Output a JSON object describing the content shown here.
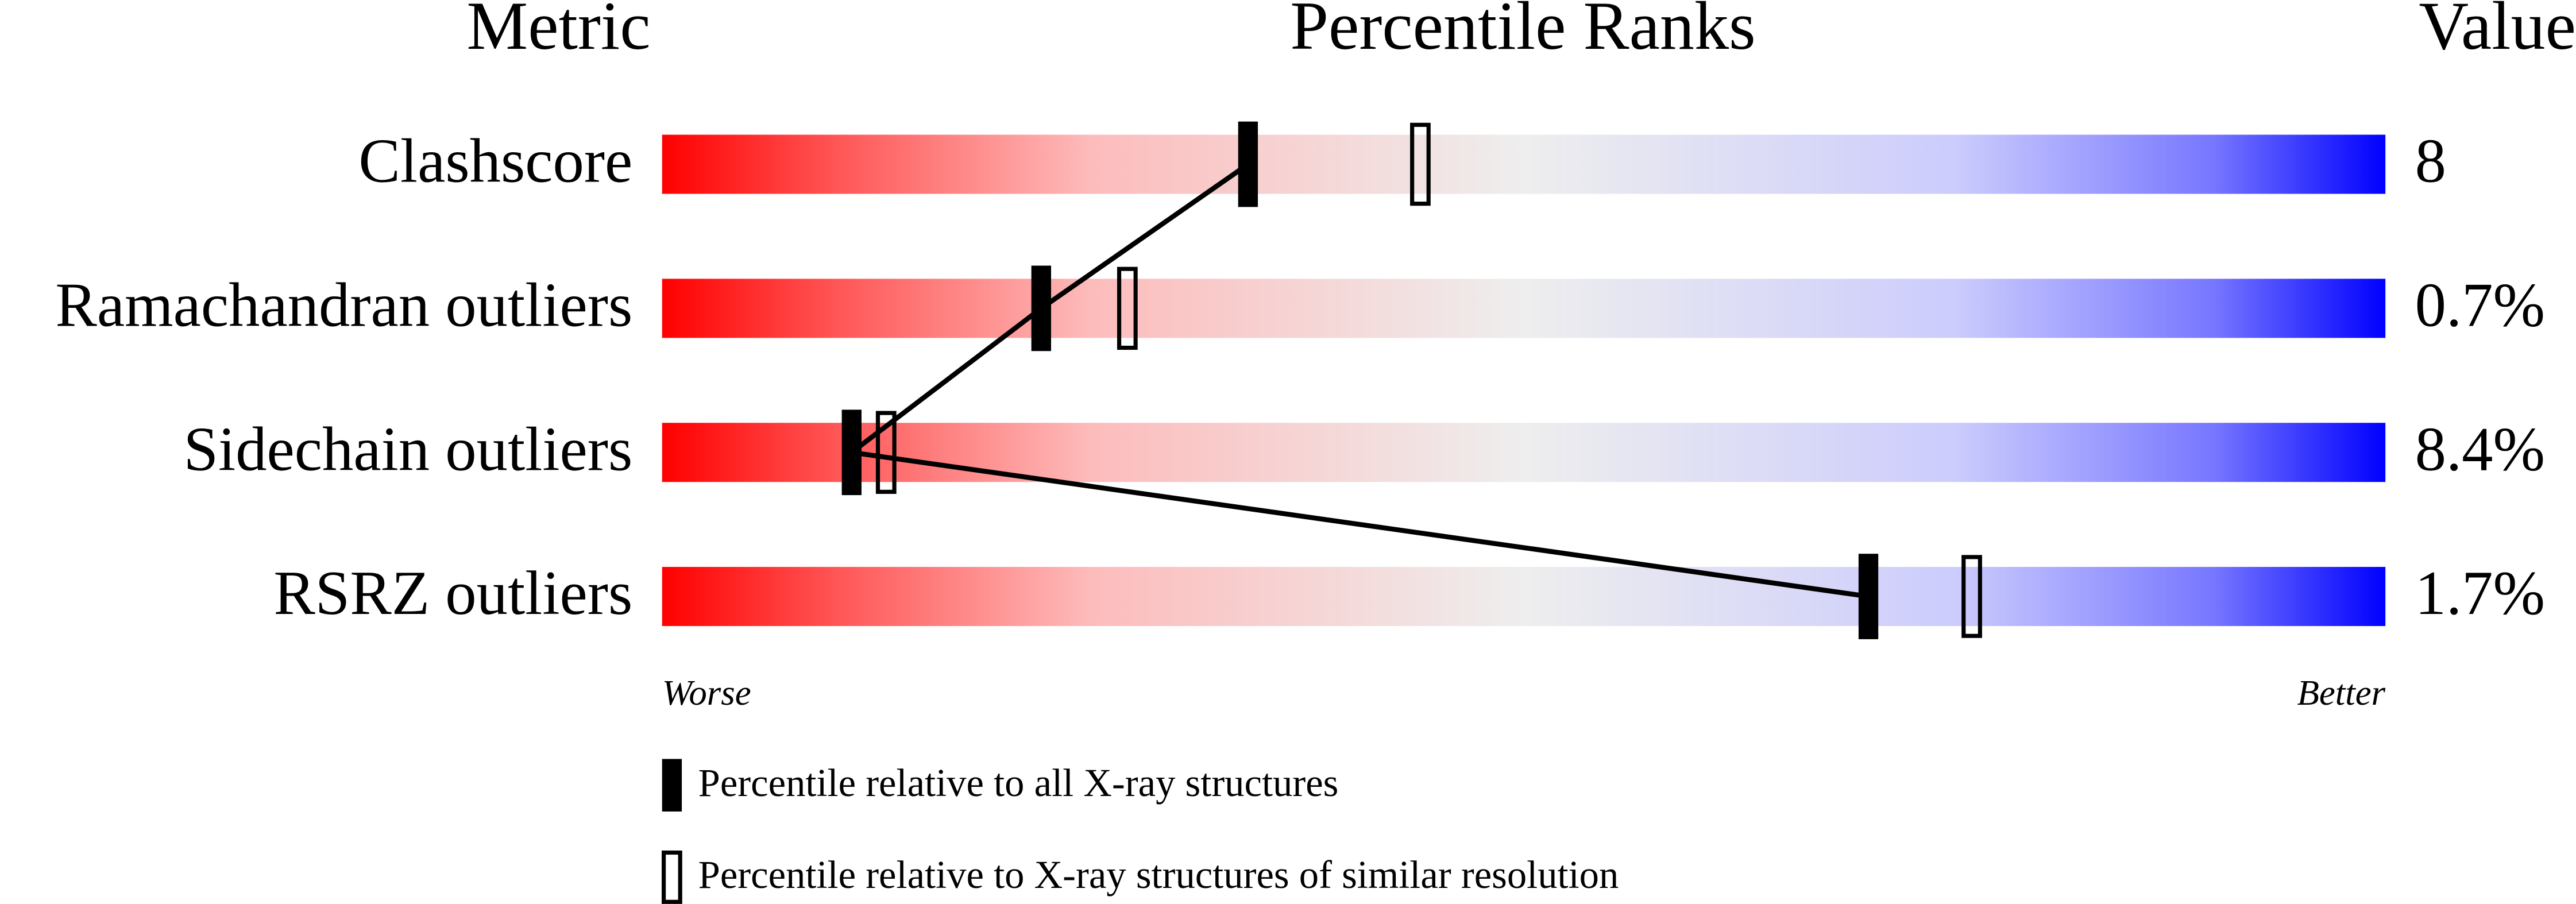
{
  "chart_data": {
    "type": "percentile",
    "headers": [
      "Metric",
      "Percentile Ranks",
      "Value"
    ],
    "categories": [
      "Clashscore",
      "Ramachandran outliers",
      "Sidechain outliers",
      "RSRZ outliers"
    ],
    "metric_values": [
      "8",
      "0.7%",
      "8.4%",
      "1.7%"
    ],
    "xlim": [
      0,
      100
    ],
    "axis_end_labels": [
      "Worse",
      "Better"
    ],
    "series": [
      {
        "name": "Percentile relative to all X-ray structures",
        "color": "#000000",
        "values": [
          34,
          22,
          11,
          70
        ]
      },
      {
        "name": "Percentile relative to X-ray structures of similar resolution",
        "color": "#000000",
        "values": [
          44,
          27,
          13,
          76
        ]
      }
    ]
  }
}
